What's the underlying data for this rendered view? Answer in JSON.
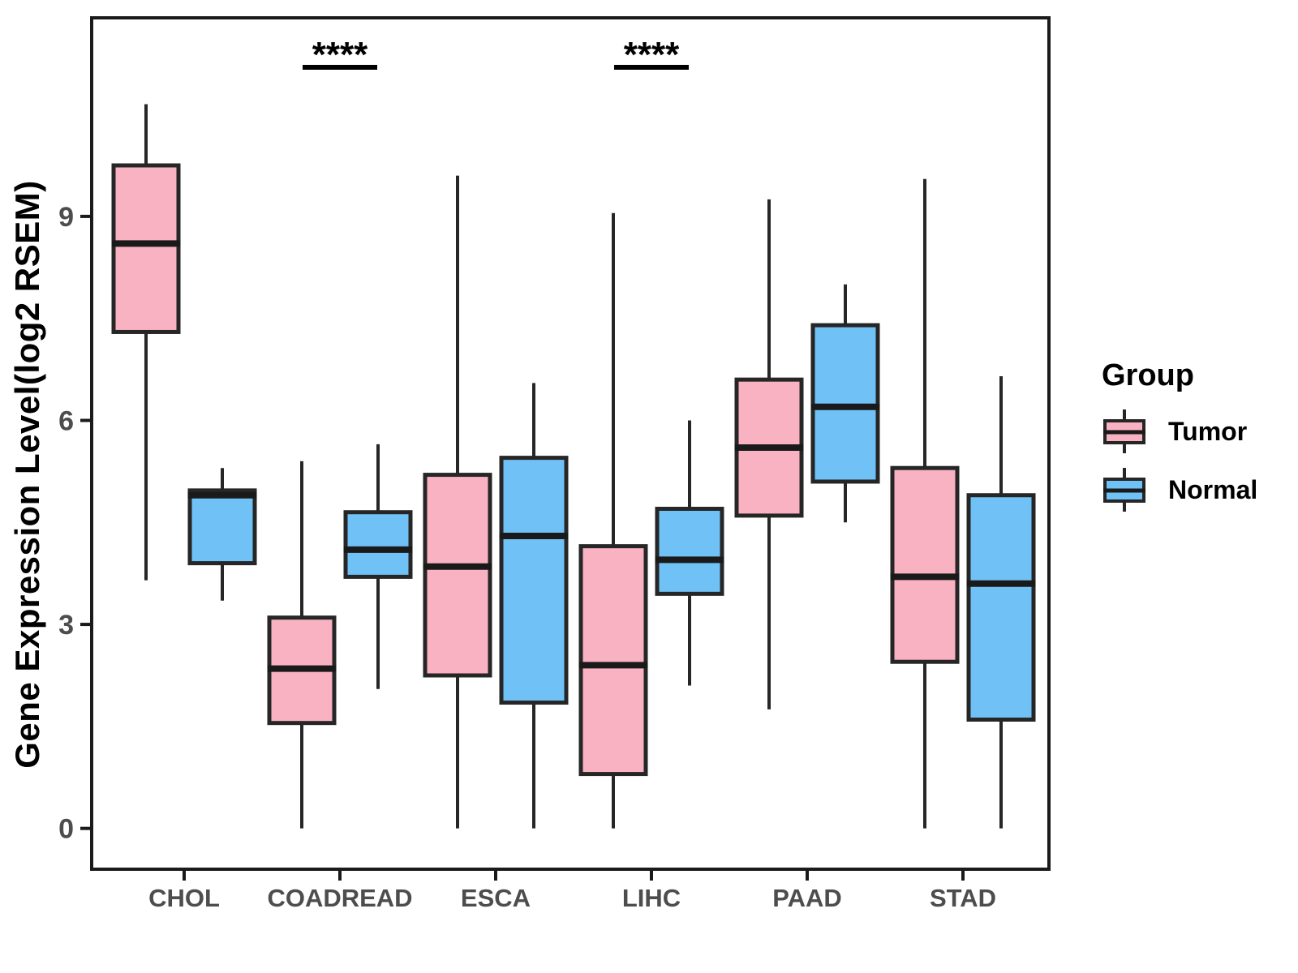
{
  "y_axis": {
    "title": "Gene Expression Level(log2 RSEM)",
    "ticks": [
      0,
      3,
      6,
      9
    ],
    "range": [
      -0.6,
      11.92
    ]
  },
  "x_axis": {
    "categories": [
      "CHOL",
      "COADREAD",
      "ESCA",
      "LIHC",
      "PAAD",
      "STAD"
    ]
  },
  "legend": {
    "title": "Group",
    "items": [
      {
        "label": "Tumor",
        "color": "#F9B2C1"
      },
      {
        "label": "Normal",
        "color": "#6FC1F6"
      }
    ]
  },
  "annotations": [
    {
      "text": "****",
      "category": "COADREAD"
    },
    {
      "text": "****",
      "category": "LIHC"
    }
  ],
  "colors": {
    "box_border": "#262626",
    "median": "#1A1A1A",
    "whisker": "#262626",
    "panel_border": "#1A1A1A",
    "axis_text": "#4D4D4D",
    "annotation": "#000000",
    "background": "#FFFFFF"
  },
  "chart_data": {
    "type": "boxplot",
    "title": "",
    "xlabel": "",
    "ylabel": "Gene Expression Level(log2 RSEM)",
    "ylim": [
      -0.6,
      11.92
    ],
    "yticks": [
      0,
      3,
      6,
      9
    ],
    "grid": false,
    "legend_position": "right",
    "categories": [
      "CHOL",
      "COADREAD",
      "ESCA",
      "LIHC",
      "PAAD",
      "STAD"
    ],
    "series": [
      {
        "name": "Tumor",
        "fill": "#F9B2C1",
        "boxes": [
          {
            "category": "CHOL",
            "min": 3.65,
            "q1": 7.3,
            "median": 8.6,
            "q3": 9.75,
            "max": 10.65
          },
          {
            "category": "COADREAD",
            "min": 0.0,
            "q1": 1.55,
            "median": 2.35,
            "q3": 3.1,
            "max": 5.4
          },
          {
            "category": "ESCA",
            "min": 0.0,
            "q1": 2.25,
            "median": 3.85,
            "q3": 5.2,
            "max": 9.6
          },
          {
            "category": "LIHC",
            "min": 0.0,
            "q1": 0.8,
            "median": 2.4,
            "q3": 4.15,
            "max": 9.05
          },
          {
            "category": "PAAD",
            "min": 1.75,
            "q1": 4.6,
            "median": 5.6,
            "q3": 6.6,
            "max": 9.25
          },
          {
            "category": "STAD",
            "min": 0.0,
            "q1": 2.45,
            "median": 3.7,
            "q3": 5.3,
            "max": 9.55
          }
        ]
      },
      {
        "name": "Normal",
        "fill": "#6FC1F6",
        "boxes": [
          {
            "category": "CHOL",
            "min": 3.35,
            "q1": 3.9,
            "median": 4.9,
            "q3": 4.97,
            "max": 5.3
          },
          {
            "category": "COADREAD",
            "min": 2.05,
            "q1": 3.7,
            "median": 4.1,
            "q3": 4.65,
            "max": 5.65
          },
          {
            "category": "ESCA",
            "min": 0.0,
            "q1": 1.85,
            "median": 4.3,
            "q3": 5.45,
            "max": 6.55
          },
          {
            "category": "LIHC",
            "min": 2.1,
            "q1": 3.45,
            "median": 3.95,
            "q3": 4.7,
            "max": 6.0
          },
          {
            "category": "PAAD",
            "min": 4.5,
            "q1": 5.1,
            "median": 6.2,
            "q3": 7.4,
            "max": 8.0
          },
          {
            "category": "STAD",
            "min": 0.0,
            "q1": 1.6,
            "median": 3.6,
            "q3": 4.9,
            "max": 6.65
          }
        ]
      }
    ],
    "significance": [
      {
        "category": "COADREAD",
        "label": "****"
      },
      {
        "category": "LIHC",
        "label": "****"
      }
    ]
  }
}
